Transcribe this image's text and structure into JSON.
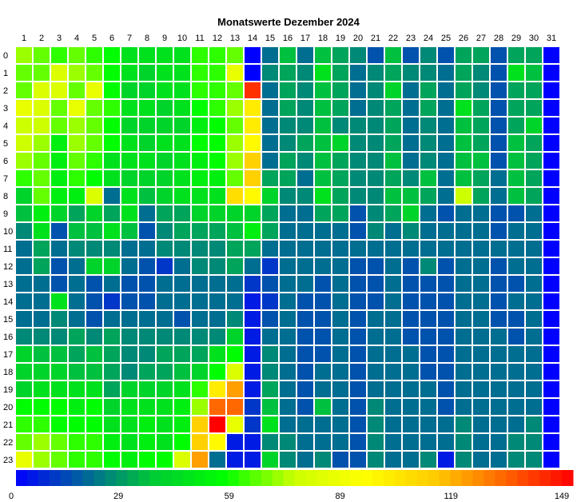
{
  "chart_data": {
    "type": "heatmap",
    "title": "Monatswerte Dezember 2024",
    "x_categories": [
      "1",
      "2",
      "3",
      "4",
      "5",
      "6",
      "7",
      "8",
      "9",
      "10",
      "11",
      "12",
      "13",
      "14",
      "15",
      "16",
      "17",
      "18",
      "19",
      "20",
      "21",
      "22",
      "23",
      "24",
      "25",
      "26",
      "27",
      "28",
      "29",
      "30",
      "31"
    ],
    "y_categories": [
      "0",
      "1",
      "2",
      "3",
      "4",
      "5",
      "6",
      "7",
      "8",
      "9",
      "10",
      "11",
      "12",
      "13",
      "14",
      "15",
      "16",
      "17",
      "18",
      "19",
      "20",
      "21",
      "22",
      "23"
    ],
    "value_range": [
      0,
      149
    ],
    "colorbar_ticks": [
      0,
      29,
      59,
      89,
      119,
      149
    ],
    "colorscale": [
      "#0000ff",
      "#006699",
      "#00cc33",
      "#00ff00",
      "#ccff00",
      "#ffff00",
      "#ffcc00",
      "#ff6600",
      "#ff0000"
    ],
    "values": [
      [
        70,
        65,
        60,
        65,
        60,
        55,
        45,
        45,
        45,
        45,
        60,
        60,
        65,
        0,
        20,
        35,
        20,
        35,
        30,
        25,
        15,
        35,
        15,
        25,
        15,
        30,
        30,
        15,
        30,
        30,
        0
      ],
      [
        65,
        65,
        80,
        70,
        65,
        55,
        45,
        40,
        45,
        45,
        60,
        60,
        85,
        0,
        25,
        30,
        25,
        45,
        30,
        20,
        25,
        30,
        25,
        25,
        20,
        30,
        25,
        15,
        45,
        35,
        0
      ],
      [
        65,
        80,
        80,
        65,
        85,
        55,
        40,
        40,
        45,
        45,
        60,
        60,
        65,
        140,
        20,
        30,
        25,
        35,
        30,
        20,
        25,
        40,
        20,
        30,
        20,
        30,
        25,
        15,
        30,
        30,
        0
      ],
      [
        85,
        80,
        65,
        85,
        65,
        60,
        45,
        45,
        40,
        45,
        55,
        60,
        70,
        100,
        20,
        30,
        25,
        35,
        30,
        20,
        25,
        30,
        20,
        30,
        20,
        45,
        30,
        15,
        30,
        30,
        0
      ],
      [
        75,
        75,
        65,
        70,
        65,
        55,
        40,
        40,
        40,
        40,
        50,
        55,
        65,
        100,
        20,
        25,
        25,
        35,
        25,
        25,
        25,
        30,
        20,
        25,
        20,
        35,
        30,
        15,
        30,
        40,
        0
      ],
      [
        75,
        70,
        50,
        70,
        65,
        55,
        45,
        40,
        45,
        45,
        55,
        55,
        70,
        95,
        20,
        25,
        30,
        35,
        40,
        25,
        25,
        30,
        20,
        25,
        20,
        35,
        30,
        15,
        35,
        30,
        0
      ],
      [
        70,
        65,
        50,
        65,
        60,
        45,
        45,
        45,
        40,
        45,
        50,
        55,
        70,
        110,
        20,
        30,
        25,
        35,
        30,
        25,
        25,
        35,
        20,
        25,
        20,
        35,
        35,
        15,
        35,
        30,
        0
      ],
      [
        60,
        65,
        50,
        60,
        55,
        45,
        40,
        40,
        40,
        45,
        50,
        50,
        65,
        110,
        30,
        30,
        20,
        35,
        30,
        25,
        25,
        30,
        25,
        35,
        20,
        35,
        30,
        20,
        35,
        30,
        0
      ],
      [
        40,
        65,
        50,
        50,
        80,
        20,
        45,
        35,
        40,
        45,
        45,
        45,
        105,
        95,
        40,
        25,
        25,
        45,
        30,
        25,
        25,
        35,
        35,
        30,
        20,
        75,
        30,
        20,
        35,
        30,
        0
      ],
      [
        35,
        50,
        40,
        30,
        40,
        30,
        45,
        20,
        30,
        30,
        40,
        40,
        40,
        40,
        30,
        20,
        20,
        30,
        30,
        15,
        25,
        30,
        40,
        20,
        15,
        20,
        20,
        15,
        15,
        20,
        0
      ],
      [
        25,
        45,
        15,
        35,
        35,
        45,
        35,
        15,
        25,
        30,
        30,
        30,
        35,
        50,
        30,
        20,
        20,
        20,
        20,
        15,
        25,
        20,
        25,
        20,
        20,
        20,
        20,
        15,
        20,
        20,
        0
      ],
      [
        20,
        30,
        20,
        25,
        25,
        25,
        20,
        20,
        25,
        25,
        25,
        25,
        30,
        30,
        20,
        20,
        20,
        20,
        20,
        20,
        20,
        20,
        20,
        20,
        20,
        20,
        20,
        20,
        20,
        20,
        0
      ],
      [
        20,
        30,
        15,
        20,
        40,
        40,
        20,
        15,
        10,
        20,
        25,
        25,
        30,
        20,
        10,
        20,
        20,
        20,
        20,
        15,
        15,
        20,
        15,
        25,
        15,
        20,
        20,
        15,
        20,
        20,
        0
      ],
      [
        20,
        20,
        15,
        20,
        15,
        20,
        15,
        15,
        20,
        20,
        20,
        20,
        20,
        10,
        15,
        20,
        20,
        15,
        20,
        15,
        15,
        20,
        15,
        15,
        15,
        20,
        20,
        15,
        15,
        20,
        0
      ],
      [
        20,
        20,
        45,
        20,
        15,
        10,
        15,
        15,
        20,
        20,
        20,
        20,
        20,
        5,
        10,
        20,
        15,
        15,
        20,
        15,
        15,
        20,
        15,
        15,
        15,
        20,
        20,
        15,
        20,
        20,
        0
      ],
      [
        20,
        20,
        25,
        20,
        15,
        20,
        20,
        20,
        20,
        15,
        20,
        20,
        25,
        5,
        15,
        20,
        15,
        15,
        20,
        15,
        20,
        20,
        15,
        15,
        15,
        20,
        20,
        15,
        15,
        20,
        0
      ],
      [
        25,
        25,
        25,
        30,
        25,
        30,
        25,
        25,
        25,
        25,
        25,
        25,
        40,
        5,
        20,
        20,
        15,
        15,
        20,
        15,
        20,
        20,
        15,
        15,
        15,
        20,
        20,
        20,
        15,
        20,
        0
      ],
      [
        40,
        35,
        35,
        30,
        35,
        30,
        25,
        25,
        30,
        30,
        30,
        45,
        55,
        5,
        25,
        20,
        15,
        15,
        20,
        15,
        20,
        20,
        20,
        15,
        15,
        20,
        20,
        20,
        20,
        20,
        0
      ],
      [
        40,
        40,
        40,
        35,
        35,
        30,
        25,
        30,
        30,
        35,
        40,
        55,
        80,
        5,
        25,
        20,
        15,
        20,
        20,
        15,
        20,
        20,
        20,
        15,
        15,
        20,
        20,
        20,
        20,
        20,
        0
      ],
      [
        40,
        45,
        45,
        45,
        45,
        30,
        40,
        40,
        40,
        45,
        60,
        100,
        120,
        5,
        30,
        20,
        15,
        20,
        20,
        15,
        20,
        20,
        20,
        20,
        15,
        20,
        20,
        20,
        20,
        20,
        0
      ],
      [
        55,
        55,
        55,
        50,
        55,
        40,
        45,
        45,
        45,
        50,
        70,
        130,
        130,
        10,
        35,
        20,
        15,
        35,
        20,
        15,
        25,
        20,
        20,
        20,
        15,
        20,
        20,
        20,
        20,
        20,
        0
      ],
      [
        60,
        60,
        55,
        55,
        55,
        45,
        45,
        50,
        45,
        50,
        110,
        150,
        85,
        10,
        45,
        20,
        20,
        20,
        20,
        15,
        25,
        20,
        20,
        20,
        20,
        25,
        20,
        20,
        20,
        25,
        0
      ],
      [
        65,
        70,
        65,
        60,
        60,
        50,
        45,
        50,
        45,
        55,
        110,
        95,
        5,
        5,
        25,
        25,
        20,
        20,
        20,
        15,
        25,
        20,
        20,
        20,
        20,
        25,
        20,
        20,
        25,
        25,
        0
      ],
      [
        85,
        70,
        65,
        60,
        60,
        55,
        50,
        55,
        55,
        80,
        120,
        20,
        5,
        5,
        40,
        25,
        20,
        25,
        15,
        15,
        25,
        20,
        20,
        25,
        5,
        25,
        20,
        20,
        25,
        25,
        0
      ]
    ]
  }
}
